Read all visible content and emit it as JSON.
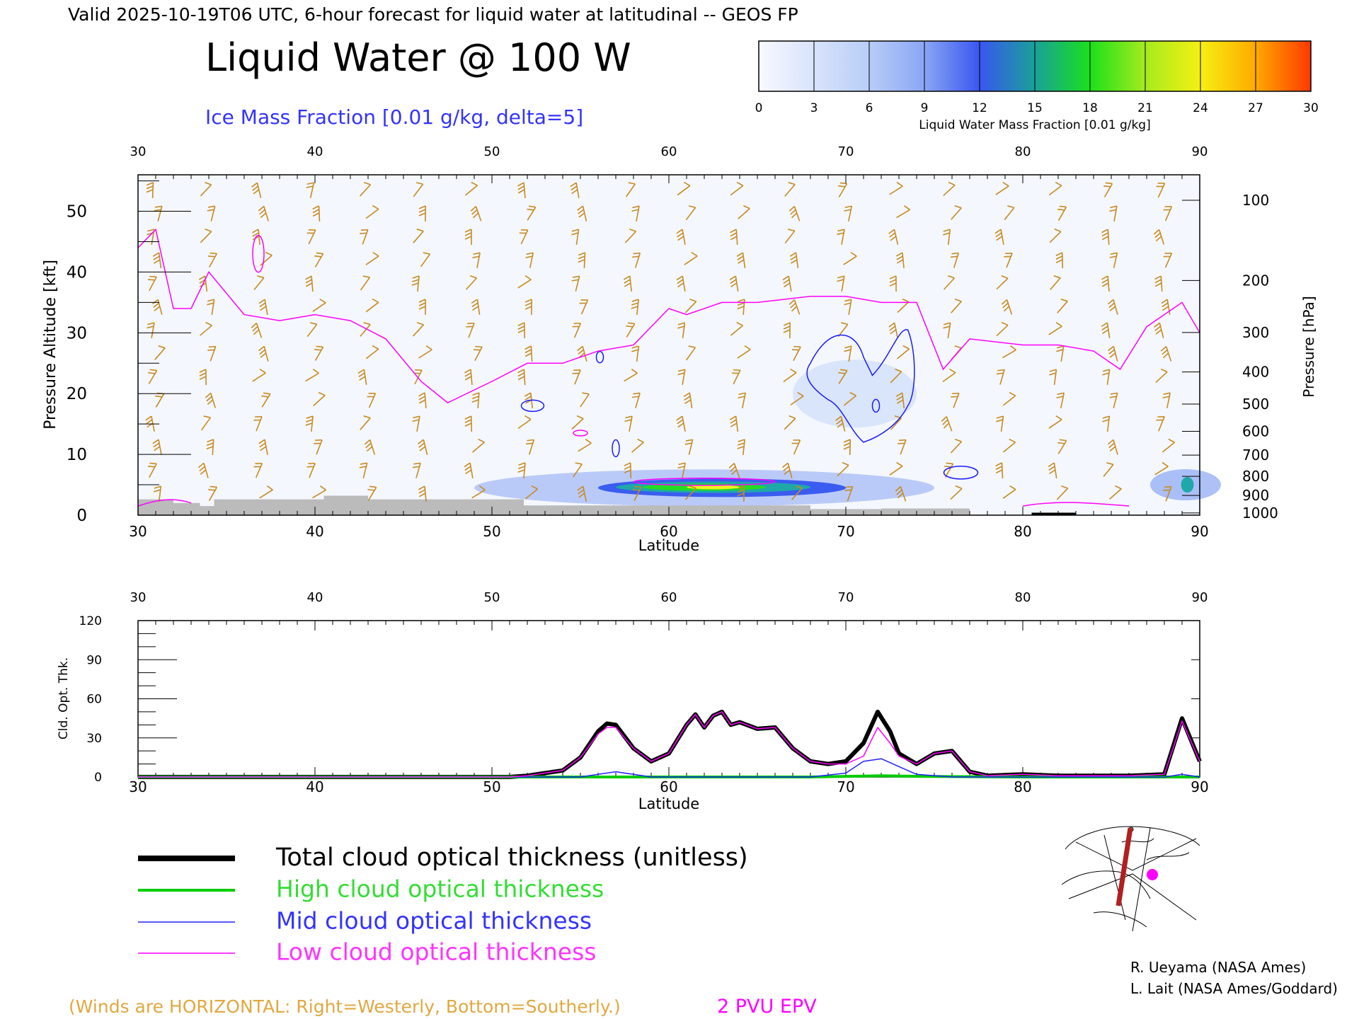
{
  "header": {
    "valid_line": "Valid 2025-10-19T06 UTC, 6-hour forecast for liquid water at latitudinal -- GEOS FP",
    "title": "Liquid Water @ 100 W",
    "subtitle": "Ice Mass Fraction [0.01 g/kg, delta=5]"
  },
  "colorbar": {
    "label": "Liquid Water Mass Fraction [0.01 g/kg]",
    "ticks": [
      "0",
      "3",
      "6",
      "9",
      "12",
      "15",
      "18",
      "21",
      "24",
      "27",
      "30"
    ],
    "colors": [
      "#f7f8ff",
      "#c6d8f8",
      "#a6c0f7",
      "#84a0f3",
      "#3a5cf0",
      "#1fa8a8",
      "#22dd22",
      "#8ee82a",
      "#f0f020",
      "#ffb400",
      "#ff5000"
    ]
  },
  "colors": {
    "ice_contour": "#1a1aff",
    "epv_contour": "#ff00ff",
    "wind_barbs": "#c88a20",
    "terrain": "#bbbbbb",
    "total": "#000000",
    "high": "#00cc00",
    "mid": "#2222ff",
    "low": "#ff00ff"
  },
  "chart_data": [
    {
      "type": "heatmap",
      "xlabel": "Latitude",
      "ylabel": "Pressure Altitude [kft]",
      "ylabel_right": "Pressure [hPa]",
      "x_ticks": [
        "30",
        "40",
        "50",
        "60",
        "70",
        "80",
        "90"
      ],
      "y_ticks": [
        "0",
        "10",
        "20",
        "30",
        "40",
        "50"
      ],
      "pressure_ticks": [
        "100",
        "200",
        "300",
        "400",
        "500",
        "600",
        "700",
        "800",
        "900",
        "1000"
      ],
      "xlim": [
        30,
        90
      ],
      "ylim": [
        0,
        56
      ],
      "liquid_water_blobs": [
        {
          "lat_min": 53,
          "lat_max": 75,
          "kft_min": 2,
          "kft_max": 7,
          "peak": 22
        },
        {
          "lat_min": 88,
          "lat_max": 90,
          "kft_min": 2,
          "kft_max": 7,
          "peak": 12
        }
      ],
      "epv_2pvu_line": {
        "lat": [
          30,
          31,
          32,
          33,
          34,
          36,
          38,
          40,
          42,
          44,
          46,
          47.5,
          50,
          52,
          54,
          56,
          58,
          60,
          61,
          63,
          65,
          68,
          70,
          72,
          74,
          75.5,
          77,
          80,
          82,
          84,
          85.5,
          87,
          89,
          90
        ],
        "kft": [
          44,
          47,
          34,
          34,
          40,
          33,
          32,
          33,
          32,
          29,
          22,
          18.5,
          22,
          25,
          25,
          27,
          28,
          34,
          33,
          35,
          35,
          36,
          36,
          35,
          35,
          24,
          29,
          28,
          28,
          27,
          24,
          31,
          35,
          30
        ]
      }
    },
    {
      "type": "line",
      "xlabel": "Latitude",
      "ylabel": "Cld. Opt. Thk.",
      "x_ticks": [
        "30",
        "40",
        "50",
        "60",
        "70",
        "80",
        "90"
      ],
      "y_ticks": [
        "0",
        "30",
        "60",
        "90",
        "120"
      ],
      "xlim": [
        30,
        90
      ],
      "ylim": [
        0,
        120
      ],
      "series": [
        {
          "name": "Total cloud optical thickness (unitless)",
          "x": [
            30,
            51,
            52,
            53,
            54,
            55,
            56,
            56.5,
            57,
            58,
            59,
            60,
            61,
            61.5,
            62,
            62.5,
            63,
            63.5,
            64,
            65,
            66,
            67,
            68,
            69,
            70,
            71,
            71.8,
            72.5,
            73,
            74,
            75,
            76,
            77,
            78,
            80,
            82,
            84,
            86,
            88,
            89,
            90
          ],
          "y": [
            0,
            0,
            1,
            3,
            5,
            15,
            35,
            41,
            40,
            22,
            12,
            18,
            40,
            48,
            38,
            47,
            50,
            40,
            42,
            37,
            38,
            22,
            12,
            10,
            12,
            26,
            50,
            35,
            18,
            10,
            18,
            20,
            4,
            1,
            2,
            1,
            1,
            1,
            2,
            45,
            12
          ]
        },
        {
          "name": "High cloud optical thickness",
          "x": [
            30,
            50,
            60,
            68,
            70,
            72,
            74,
            80,
            90
          ],
          "y": [
            0,
            0,
            0,
            0,
            0.5,
            1,
            0.5,
            0,
            0
          ]
        },
        {
          "name": "Mid cloud optical thickness",
          "x": [
            30,
            55,
            56,
            57,
            58,
            59,
            60,
            68,
            70,
            71,
            72,
            73,
            74,
            76,
            78,
            88,
            89,
            90
          ],
          "y": [
            0,
            0,
            2,
            4,
            2,
            0,
            0,
            0,
            3,
            12,
            14,
            8,
            2,
            0,
            0,
            0,
            2,
            0
          ]
        },
        {
          "name": "Low cloud optical thickness",
          "x": [
            30,
            51,
            52,
            53,
            54,
            55,
            56,
            56.5,
            57,
            58,
            59,
            60,
            61,
            61.5,
            62,
            62.5,
            63,
            63.5,
            64,
            65,
            66,
            67,
            68,
            69,
            70,
            71,
            71.8,
            72.5,
            73,
            74,
            75,
            76,
            77,
            78,
            80,
            82,
            84,
            86,
            88,
            89,
            90
          ],
          "y": [
            0,
            0,
            1,
            3,
            5,
            15,
            33,
            38,
            38,
            22,
            12,
            18,
            40,
            48,
            38,
            47,
            50,
            40,
            42,
            37,
            38,
            22,
            12,
            10,
            10,
            16,
            38,
            26,
            16,
            10,
            18,
            20,
            4,
            1,
            2,
            1,
            1,
            1,
            2,
            43,
            12
          ]
        }
      ]
    }
  ],
  "legend": {
    "total": "Total cloud optical thickness (unitless)",
    "high": "High cloud optical thickness",
    "mid": "Mid cloud optical thickness",
    "low": "Low cloud optical thickness"
  },
  "footer": {
    "winds_note": "(Winds are HORIZONTAL: Right=Westerly, Bottom=Southerly.)",
    "epv_label": "2 PVU EPV",
    "credit1": "R. Ueyama (NASA Ames)",
    "credit2": "L. Lait (NASA Ames/Goddard)"
  }
}
